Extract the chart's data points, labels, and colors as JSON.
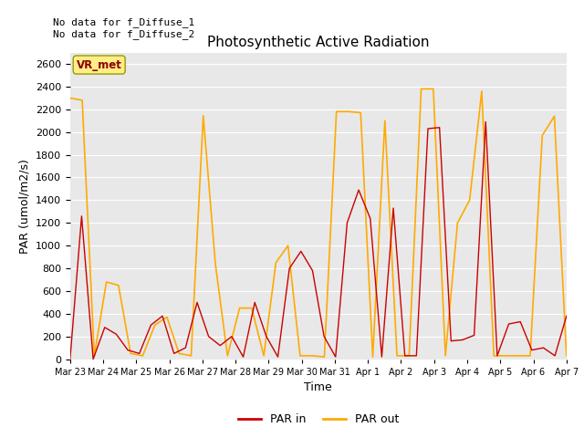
{
  "title": "Photosynthetic Active Radiation",
  "xlabel": "Time",
  "ylabel": "PAR (umol/m2/s)",
  "text_top_left": "No data for f_Diffuse_1\nNo data for f_Diffuse_2",
  "legend_box_label": "VR_met",
  "legend_box_color": "#ffee88",
  "legend_box_text_color": "#8b0000",
  "ylim": [
    0,
    2700
  ],
  "yticks": [
    0,
    200,
    400,
    600,
    800,
    1000,
    1200,
    1400,
    1600,
    1800,
    2000,
    2200,
    2400,
    2600
  ],
  "xtick_labels": [
    "Mar 23",
    "Mar 24",
    "Mar 25",
    "Mar 26",
    "Mar 27",
    "Mar 28",
    "Mar 29",
    "Mar 30",
    "Mar 31",
    "Apr 1",
    "Apr 2",
    "Apr 3",
    "Apr 4",
    "Apr 5",
    "Apr 6",
    "Apr 7"
  ],
  "par_in_color": "#cc0000",
  "par_out_color": "#ffaa00",
  "background_color": "#e8e8e8",
  "par_in": [
    0,
    1260,
    0,
    280,
    220,
    80,
    50,
    300,
    380,
    50,
    100,
    500,
    200,
    120,
    200,
    20,
    500,
    200,
    20,
    800,
    950,
    780,
    200,
    20,
    1200,
    1490,
    1240,
    20,
    1330,
    30,
    30,
    2030,
    2040,
    160,
    170,
    210,
    2090,
    30,
    310,
    330,
    80,
    100,
    30,
    380
  ],
  "par_out": [
    2300,
    2280,
    30,
    680,
    650,
    50,
    30,
    300,
    370,
    50,
    30,
    2145,
    840,
    30,
    450,
    450,
    30,
    850,
    1000,
    30,
    30,
    20,
    2180,
    2180,
    2170,
    20,
    2100,
    30,
    30,
    2380,
    2380,
    30,
    1200,
    1400,
    2360,
    30,
    30,
    30,
    30,
    1970,
    2140,
    30
  ]
}
